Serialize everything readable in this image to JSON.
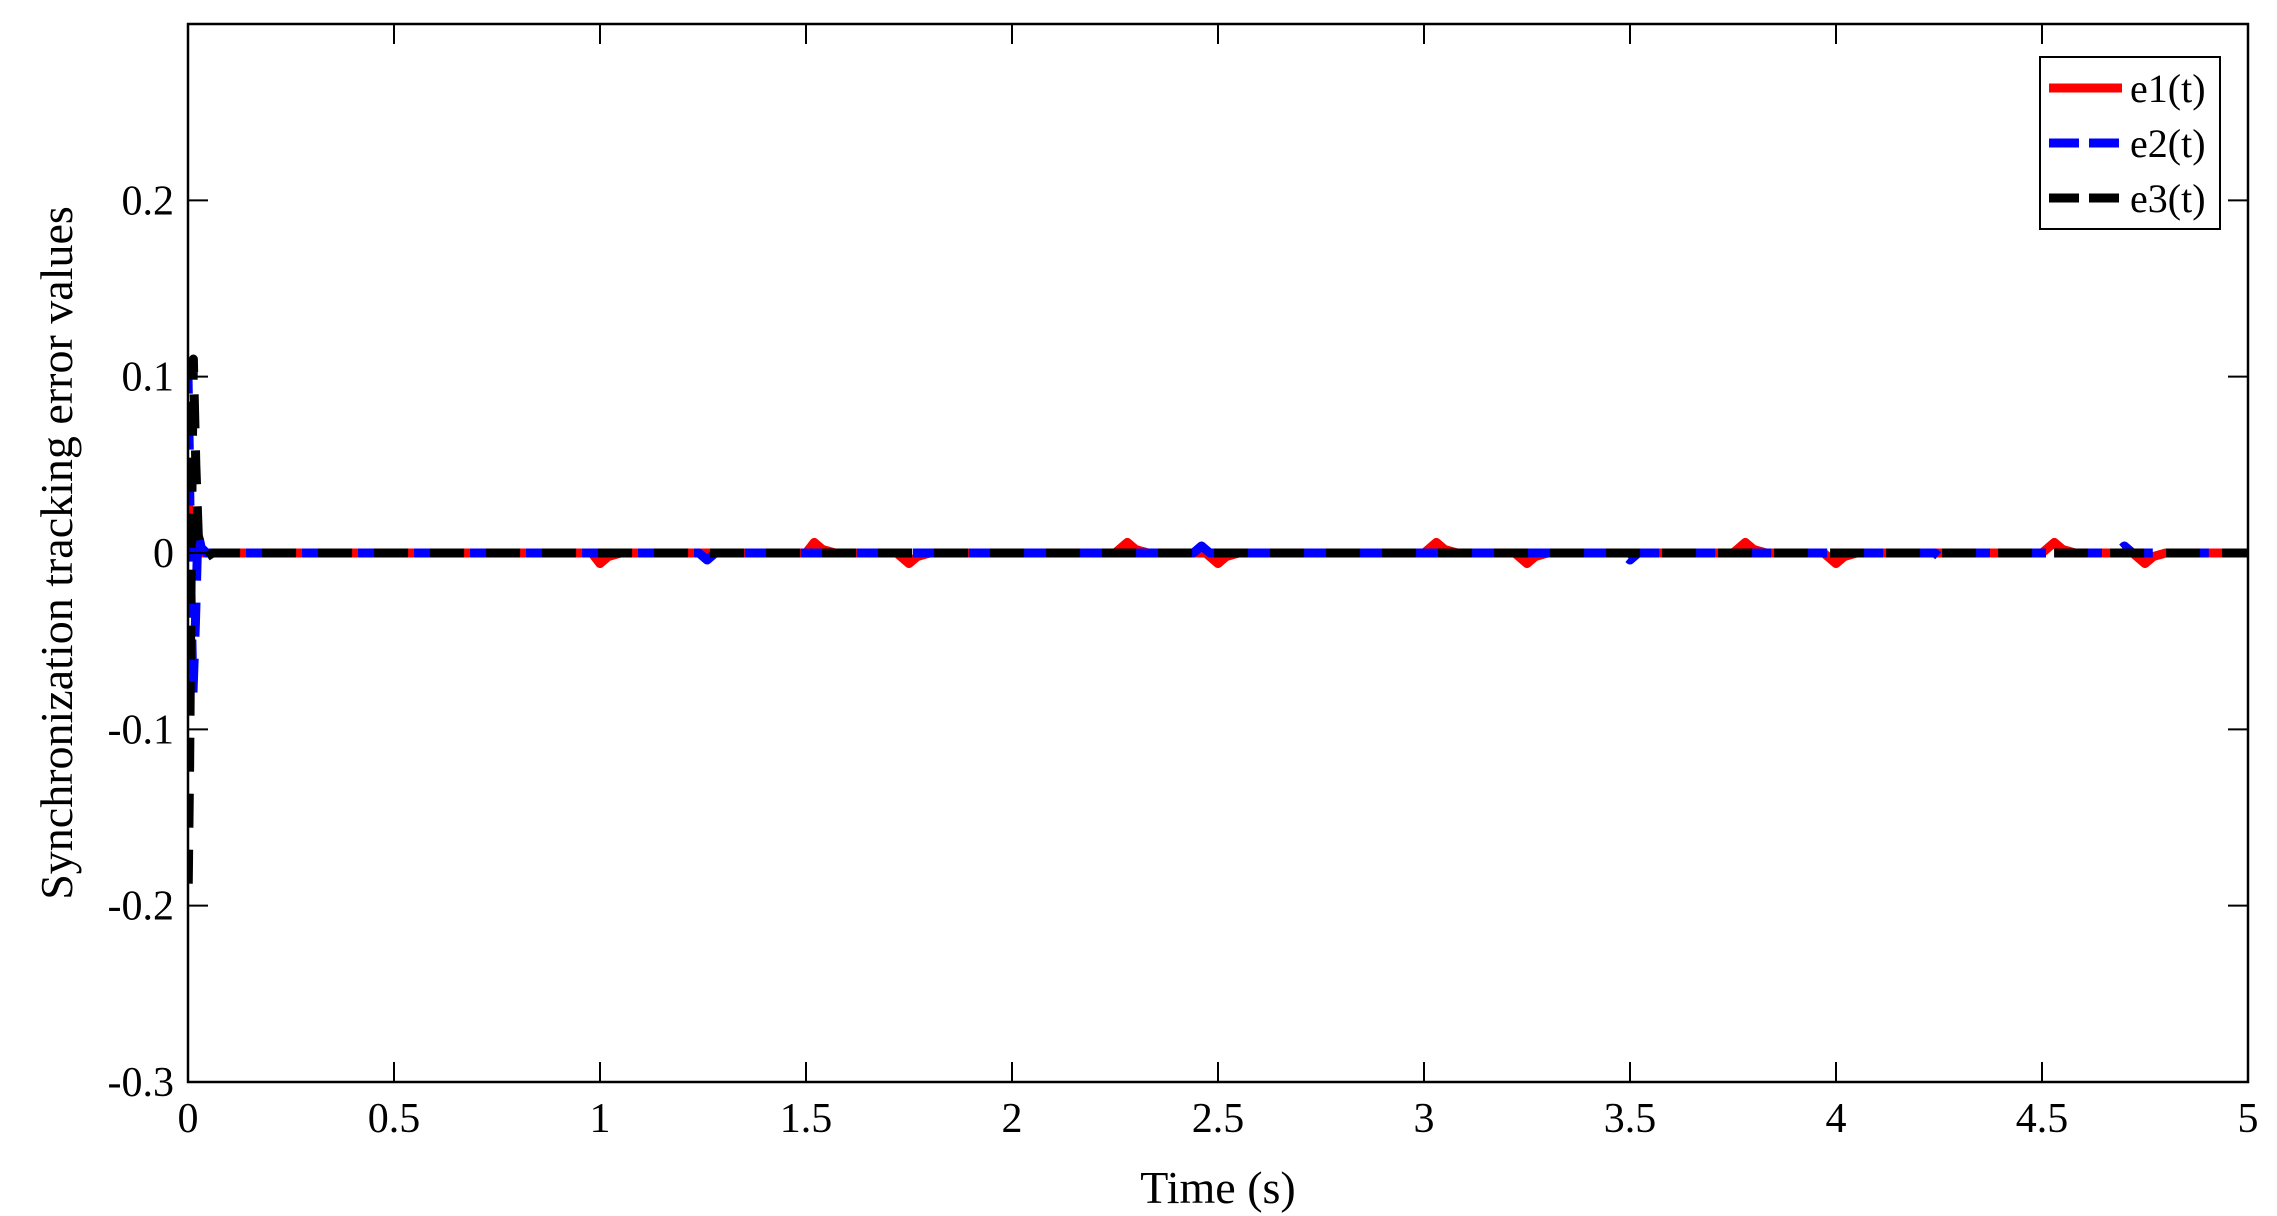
{
  "chart_data": {
    "type": "line",
    "title": "",
    "xlabel": "Time (s)",
    "ylabel": "Synchronization tracking error values",
    "xlim": [
      0,
      5
    ],
    "ylim": [
      -0.3,
      0.3
    ],
    "xticks": [
      0,
      0.5,
      1,
      1.5,
      2,
      2.5,
      3,
      3.5,
      4,
      4.5,
      5
    ],
    "xtick_labels": [
      "0",
      "0.5",
      "1",
      "1.5",
      "2",
      "2.5",
      "3",
      "3.5",
      "4",
      "4.5",
      "5"
    ],
    "yticks": [
      -0.3,
      -0.2,
      -0.1,
      0,
      0.1,
      0.2
    ],
    "ytick_labels": [
      "-0.3",
      "-0.2",
      "-0.1",
      "0",
      "0.1",
      "0.2"
    ],
    "grid": false,
    "legend_position": "top-right",
    "series": [
      {
        "name": "e1(t)",
        "color": "#ff0000",
        "style": "solid",
        "x": [
          0,
          0.005,
          0.012,
          0.02,
          0.03,
          0.05,
          0.1,
          0.5,
          0.98,
          1.0,
          1.02,
          1.05,
          1.5,
          1.52,
          1.54,
          1.57,
          1.72,
          1.75,
          1.77,
          1.8,
          2.25,
          2.28,
          2.3,
          2.33,
          2.47,
          2.5,
          2.52,
          2.55,
          3.0,
          3.03,
          3.05,
          3.08,
          3.22,
          3.25,
          3.27,
          3.3,
          3.75,
          3.78,
          3.8,
          3.83,
          3.97,
          4.0,
          4.02,
          4.05,
          4.5,
          4.53,
          4.55,
          4.58,
          4.72,
          4.75,
          4.77,
          4.8,
          5.0
        ],
        "y": [
          0.03,
          0.015,
          0.006,
          0.002,
          0,
          0,
          0,
          0,
          0,
          -0.006,
          -0.002,
          0,
          0,
          0.006,
          0.002,
          0,
          0,
          -0.006,
          -0.002,
          0,
          0,
          0.006,
          0.002,
          0,
          0,
          -0.006,
          -0.002,
          0,
          0,
          0.006,
          0.002,
          0,
          0,
          -0.006,
          -0.002,
          0,
          0,
          0.006,
          0.002,
          0,
          0,
          -0.006,
          -0.002,
          0,
          0,
          0.006,
          0.002,
          0,
          0,
          -0.006,
          -0.002,
          0,
          0
        ]
      },
      {
        "name": "e2(t)",
        "color": "#0000ff",
        "style": "dashed",
        "x": [
          0,
          0.003,
          0.007,
          0.012,
          0.018,
          0.024,
          0.032,
          0.045,
          0.1,
          1.24,
          1.26,
          1.28,
          1.98,
          2.0,
          2.02,
          2.44,
          2.46,
          2.48,
          3.48,
          3.5,
          3.52,
          4.24,
          4.26,
          4.28,
          4.68,
          4.7,
          4.72,
          5.0
        ],
        "y": [
          0.1,
          0.06,
          -0.02,
          -0.08,
          -0.04,
          0.012,
          0.003,
          0,
          0,
          0,
          -0.004,
          0,
          0,
          -0.004,
          0,
          0,
          0.004,
          0,
          0,
          -0.004,
          0,
          0,
          -0.004,
          0,
          0,
          0.004,
          0,
          0
        ]
      },
      {
        "name": "e3(t)",
        "color": "#000000",
        "style": "dashed",
        "x": [
          0,
          0.004,
          0.008,
          0.013,
          0.019,
          0.025,
          0.032,
          0.04,
          0.06,
          0.1,
          5.0
        ],
        "y": [
          -0.2,
          -0.12,
          0.0,
          0.11,
          0.05,
          0.01,
          0.003,
          -0.003,
          0,
          0,
          0
        ]
      }
    ]
  }
}
